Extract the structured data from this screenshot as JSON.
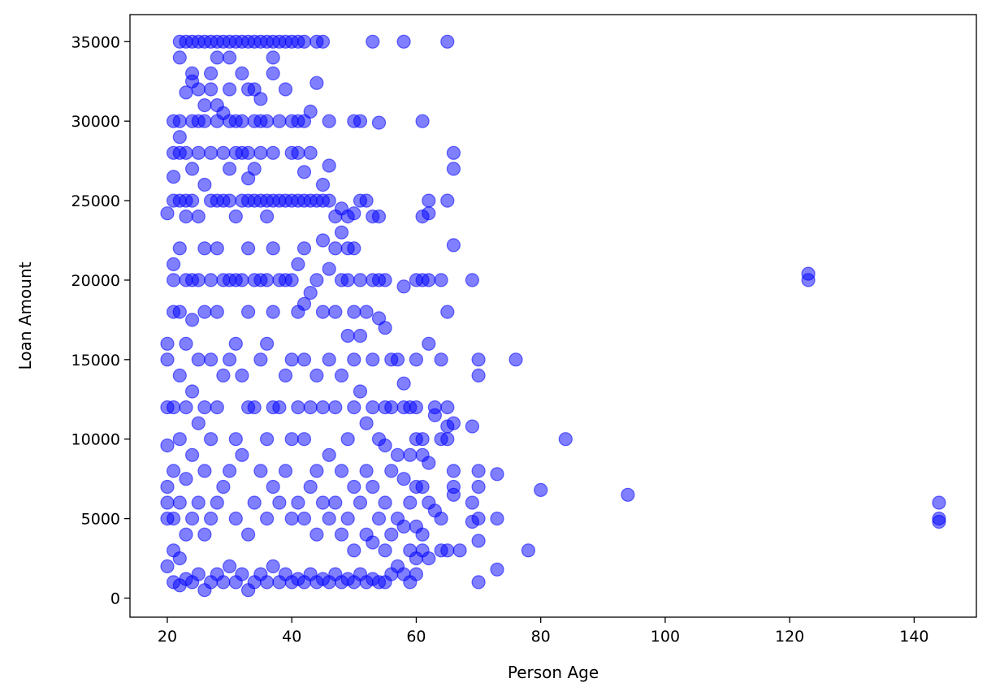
{
  "chart_data": {
    "type": "scatter",
    "title": "",
    "xlabel": "Person Age",
    "ylabel": "Loan Amount",
    "xlim": [
      14,
      150
    ],
    "ylim": [
      -1200,
      36700
    ],
    "xticks": [
      20,
      40,
      60,
      80,
      100,
      120,
      140
    ],
    "yticks": [
      0,
      5000,
      10000,
      15000,
      20000,
      25000,
      30000,
      35000
    ],
    "grid": false,
    "legend": "none",
    "marker_color": "#0000ff",
    "marker_alpha": 0.5,
    "points": [
      [
        20,
        2000
      ],
      [
        20,
        5000
      ],
      [
        20,
        6000
      ],
      [
        20,
        7000
      ],
      [
        20,
        9600
      ],
      [
        20,
        12000
      ],
      [
        20,
        15000
      ],
      [
        20,
        16000
      ],
      [
        20,
        24200
      ],
      [
        21,
        1000
      ],
      [
        21,
        3000
      ],
      [
        21,
        5000
      ],
      [
        21,
        8000
      ],
      [
        21,
        12000
      ],
      [
        21,
        18000
      ],
      [
        21,
        20000
      ],
      [
        21,
        21000
      ],
      [
        21,
        25000
      ],
      [
        21,
        26500
      ],
      [
        21,
        28000
      ],
      [
        21,
        30000
      ],
      [
        22,
        800
      ],
      [
        22,
        2500
      ],
      [
        22,
        6000
      ],
      [
        22,
        10000
      ],
      [
        22,
        14000
      ],
      [
        22,
        18000
      ],
      [
        22,
        22000
      ],
      [
        22,
        25000
      ],
      [
        22,
        28000
      ],
      [
        22,
        29000
      ],
      [
        22,
        30000
      ],
      [
        22,
        34000
      ],
      [
        22,
        35000
      ],
      [
        23,
        1200
      ],
      [
        23,
        4000
      ],
      [
        23,
        7500
      ],
      [
        23,
        12000
      ],
      [
        23,
        16000
      ],
      [
        23,
        20000
      ],
      [
        23,
        24000
      ],
      [
        23,
        25000
      ],
      [
        23,
        28000
      ],
      [
        23,
        31800
      ],
      [
        23,
        35000
      ],
      [
        24,
        1000
      ],
      [
        24,
        5000
      ],
      [
        24,
        9000
      ],
      [
        24,
        13000
      ],
      [
        24,
        17500
      ],
      [
        24,
        20000
      ],
      [
        24,
        25000
      ],
      [
        24,
        27000
      ],
      [
        24,
        30000
      ],
      [
        24,
        32500
      ],
      [
        24,
        33000
      ],
      [
        24,
        35000
      ],
      [
        25,
        1500
      ],
      [
        25,
        6000
      ],
      [
        25,
        11000
      ],
      [
        25,
        15000
      ],
      [
        25,
        20000
      ],
      [
        25,
        24000
      ],
      [
        25,
        28000
      ],
      [
        25,
        30000
      ],
      [
        25,
        32000
      ],
      [
        25,
        35000
      ],
      [
        26,
        500
      ],
      [
        26,
        4000
      ],
      [
        26,
        8000
      ],
      [
        26,
        12000
      ],
      [
        26,
        18000
      ],
      [
        26,
        22000
      ],
      [
        26,
        26000
      ],
      [
        26,
        30000
      ],
      [
        26,
        31000
      ],
      [
        26,
        35000
      ],
      [
        27,
        1000
      ],
      [
        27,
        5000
      ],
      [
        27,
        10000
      ],
      [
        27,
        15000
      ],
      [
        27,
        20000
      ],
      [
        27,
        25000
      ],
      [
        27,
        28000
      ],
      [
        27,
        32000
      ],
      [
        27,
        33000
      ],
      [
        27,
        35000
      ],
      [
        28,
        1500
      ],
      [
        28,
        6000
      ],
      [
        28,
        12000
      ],
      [
        28,
        18000
      ],
      [
        28,
        22000
      ],
      [
        28,
        25000
      ],
      [
        28,
        30000
      ],
      [
        28,
        31000
      ],
      [
        28,
        34000
      ],
      [
        28,
        35000
      ],
      [
        29,
        1000
      ],
      [
        29,
        7000
      ],
      [
        29,
        14000
      ],
      [
        29,
        20000
      ],
      [
        29,
        25000
      ],
      [
        29,
        28000
      ],
      [
        29,
        30500
      ],
      [
        29,
        35000
      ],
      [
        30,
        2000
      ],
      [
        30,
        8000
      ],
      [
        30,
        15000
      ],
      [
        30,
        20000
      ],
      [
        30,
        25000
      ],
      [
        30,
        27000
      ],
      [
        30,
        30000
      ],
      [
        30,
        32000
      ],
      [
        30,
        34000
      ],
      [
        30,
        35000
      ],
      [
        31,
        1000
      ],
      [
        31,
        5000
      ],
      [
        31,
        10000
      ],
      [
        31,
        16000
      ],
      [
        31,
        20000
      ],
      [
        31,
        24000
      ],
      [
        31,
        28000
      ],
      [
        31,
        30000
      ],
      [
        31,
        35000
      ],
      [
        32,
        1500
      ],
      [
        32,
        9000
      ],
      [
        32,
        14000
      ],
      [
        32,
        20000
      ],
      [
        32,
        25000
      ],
      [
        32,
        28000
      ],
      [
        32,
        30000
      ],
      [
        32,
        33000
      ],
      [
        32,
        35000
      ],
      [
        33,
        500
      ],
      [
        33,
        4000
      ],
      [
        33,
        12000
      ],
      [
        33,
        18000
      ],
      [
        33,
        22000
      ],
      [
        33,
        25000
      ],
      [
        33,
        26400
      ],
      [
        33,
        28000
      ],
      [
        33,
        32000
      ],
      [
        33,
        35000
      ],
      [
        34,
        1000
      ],
      [
        34,
        6000
      ],
      [
        34,
        12000
      ],
      [
        34,
        20000
      ],
      [
        34,
        25000
      ],
      [
        34,
        27000
      ],
      [
        34,
        30000
      ],
      [
        34,
        32000
      ],
      [
        34,
        35000
      ],
      [
        35,
        1500
      ],
      [
        35,
        8000
      ],
      [
        35,
        15000
      ],
      [
        35,
        20000
      ],
      [
        35,
        25000
      ],
      [
        35,
        28000
      ],
      [
        35,
        30000
      ],
      [
        35,
        31400
      ],
      [
        35,
        35000
      ],
      [
        36,
        1000
      ],
      [
        36,
        5000
      ],
      [
        36,
        10000
      ],
      [
        36,
        16000
      ],
      [
        36,
        20000
      ],
      [
        36,
        24000
      ],
      [
        36,
        25000
      ],
      [
        36,
        30000
      ],
      [
        36,
        35000
      ],
      [
        37,
        2000
      ],
      [
        37,
        7000
      ],
      [
        37,
        12000
      ],
      [
        37,
        18000
      ],
      [
        37,
        22000
      ],
      [
        37,
        25000
      ],
      [
        37,
        28000
      ],
      [
        37,
        33000
      ],
      [
        37,
        34000
      ],
      [
        37,
        35000
      ],
      [
        38,
        1000
      ],
      [
        38,
        6000
      ],
      [
        38,
        12000
      ],
      [
        38,
        20000
      ],
      [
        38,
        25000
      ],
      [
        38,
        30000
      ],
      [
        38,
        35000
      ],
      [
        39,
        1500
      ],
      [
        39,
        8000
      ],
      [
        39,
        14000
      ],
      [
        39,
        20000
      ],
      [
        39,
        25000
      ],
      [
        39,
        32000
      ],
      [
        39,
        35000
      ],
      [
        40,
        1000
      ],
      [
        40,
        5000
      ],
      [
        40,
        10000
      ],
      [
        40,
        15000
      ],
      [
        40,
        20000
      ],
      [
        40,
        25000
      ],
      [
        40,
        28000
      ],
      [
        40,
        30000
      ],
      [
        40,
        35000
      ],
      [
        41,
        1200
      ],
      [
        41,
        6000
      ],
      [
        41,
        12000
      ],
      [
        41,
        18000
      ],
      [
        41,
        21000
      ],
      [
        41,
        25000
      ],
      [
        41,
        28000
      ],
      [
        41,
        30000
      ],
      [
        41,
        35000
      ],
      [
        42,
        1000
      ],
      [
        42,
        5000
      ],
      [
        42,
        10000
      ],
      [
        42,
        15000
      ],
      [
        42,
        18500
      ],
      [
        42,
        22000
      ],
      [
        42,
        25000
      ],
      [
        42,
        26800
      ],
      [
        42,
        30000
      ],
      [
        42,
        35000
      ],
      [
        43,
        1500
      ],
      [
        43,
        7000
      ],
      [
        43,
        12000
      ],
      [
        43,
        19200
      ],
      [
        43,
        25000
      ],
      [
        43,
        28000
      ],
      [
        43,
        30600
      ],
      [
        44,
        1000
      ],
      [
        44,
        4000
      ],
      [
        44,
        8000
      ],
      [
        44,
        14000
      ],
      [
        44,
        20000
      ],
      [
        44,
        25000
      ],
      [
        44,
        32400
      ],
      [
        44,
        35000
      ],
      [
        45,
        1200
      ],
      [
        45,
        6000
      ],
      [
        45,
        12000
      ],
      [
        45,
        18000
      ],
      [
        45,
        22500
      ],
      [
        45,
        25000
      ],
      [
        45,
        26000
      ],
      [
        45,
        35000
      ],
      [
        46,
        1000
      ],
      [
        46,
        5000
      ],
      [
        46,
        9000
      ],
      [
        46,
        15000
      ],
      [
        46,
        20700
      ],
      [
        46,
        25000
      ],
      [
        46,
        27200
      ],
      [
        46,
        30000
      ],
      [
        47,
        1500
      ],
      [
        47,
        6000
      ],
      [
        47,
        12000
      ],
      [
        47,
        18000
      ],
      [
        47,
        22000
      ],
      [
        47,
        24000
      ],
      [
        48,
        1000
      ],
      [
        48,
        4000
      ],
      [
        48,
        8000
      ],
      [
        48,
        14000
      ],
      [
        48,
        20000
      ],
      [
        48,
        23000
      ],
      [
        48,
        24500
      ],
      [
        49,
        1200
      ],
      [
        49,
        5000
      ],
      [
        49,
        10000
      ],
      [
        49,
        16500
      ],
      [
        49,
        20000
      ],
      [
        49,
        22000
      ],
      [
        49,
        24000
      ],
      [
        50,
        1000
      ],
      [
        50,
        3000
      ],
      [
        50,
        7000
      ],
      [
        50,
        12000
      ],
      [
        50,
        15000
      ],
      [
        50,
        18000
      ],
      [
        50,
        22000
      ],
      [
        50,
        24200
      ],
      [
        50,
        30000
      ],
      [
        51,
        1500
      ],
      [
        51,
        6000
      ],
      [
        51,
        13000
      ],
      [
        51,
        16500
      ],
      [
        51,
        20000
      ],
      [
        51,
        25000
      ],
      [
        51,
        30000
      ],
      [
        52,
        1000
      ],
      [
        52,
        4000
      ],
      [
        52,
        8000
      ],
      [
        52,
        11000
      ],
      [
        52,
        18000
      ],
      [
        52,
        25000
      ],
      [
        53,
        1200
      ],
      [
        53,
        3500
      ],
      [
        53,
        7000
      ],
      [
        53,
        12000
      ],
      [
        53,
        15000
      ],
      [
        53,
        20000
      ],
      [
        53,
        24000
      ],
      [
        53,
        35000
      ],
      [
        54,
        1000
      ],
      [
        54,
        5000
      ],
      [
        54,
        10000
      ],
      [
        54,
        17600
      ],
      [
        54,
        20000
      ],
      [
        54,
        24000
      ],
      [
        54,
        29900
      ],
      [
        55,
        1000
      ],
      [
        55,
        3000
      ],
      [
        55,
        6000
      ],
      [
        55,
        9600
      ],
      [
        55,
        12000
      ],
      [
        55,
        17000
      ],
      [
        55,
        20000
      ],
      [
        56,
        1500
      ],
      [
        56,
        4000
      ],
      [
        56,
        8000
      ],
      [
        56,
        12000
      ],
      [
        56,
        15000
      ],
      [
        57,
        2000
      ],
      [
        57,
        5000
      ],
      [
        57,
        9000
      ],
      [
        57,
        15000
      ],
      [
        58,
        1500
      ],
      [
        58,
        4500
      ],
      [
        58,
        7500
      ],
      [
        58,
        12000
      ],
      [
        58,
        13500
      ],
      [
        58,
        19600
      ],
      [
        58,
        35000
      ],
      [
        59,
        1000
      ],
      [
        59,
        3000
      ],
      [
        59,
        6000
      ],
      [
        59,
        9000
      ],
      [
        59,
        12000
      ],
      [
        60,
        1500
      ],
      [
        60,
        2500
      ],
      [
        60,
        4500
      ],
      [
        60,
        7000
      ],
      [
        60,
        10000
      ],
      [
        60,
        12000
      ],
      [
        60,
        15000
      ],
      [
        60,
        20000
      ],
      [
        61,
        3000
      ],
      [
        61,
        4000
      ],
      [
        61,
        7000
      ],
      [
        61,
        9000
      ],
      [
        61,
        10000
      ],
      [
        61,
        20000
      ],
      [
        61,
        24000
      ],
      [
        61,
        30000
      ],
      [
        62,
        2500
      ],
      [
        62,
        6000
      ],
      [
        62,
        8500
      ],
      [
        62,
        16000
      ],
      [
        62,
        20000
      ],
      [
        62,
        24200
      ],
      [
        62,
        25000
      ],
      [
        63,
        5500
      ],
      [
        63,
        11500
      ],
      [
        63,
        12000
      ],
      [
        64,
        3000
      ],
      [
        64,
        5000
      ],
      [
        64,
        10000
      ],
      [
        64,
        15000
      ],
      [
        64,
        20000
      ],
      [
        65,
        3000
      ],
      [
        65,
        10000
      ],
      [
        65,
        10800
      ],
      [
        65,
        12000
      ],
      [
        65,
        18000
      ],
      [
        65,
        25000
      ],
      [
        65,
        35000
      ],
      [
        66,
        6500
      ],
      [
        66,
        7000
      ],
      [
        66,
        8000
      ],
      [
        66,
        11000
      ],
      [
        66,
        22200
      ],
      [
        66,
        27000
      ],
      [
        66,
        28000
      ],
      [
        67,
        3000
      ],
      [
        69,
        4800
      ],
      [
        69,
        6000
      ],
      [
        69,
        10800
      ],
      [
        69,
        20000
      ],
      [
        70,
        1000
      ],
      [
        70,
        3600
      ],
      [
        70,
        5000
      ],
      [
        70,
        7000
      ],
      [
        70,
        8000
      ],
      [
        70,
        14000
      ],
      [
        70,
        15000
      ],
      [
        73,
        1800
      ],
      [
        73,
        5000
      ],
      [
        73,
        7800
      ],
      [
        76,
        15000
      ],
      [
        78,
        3000
      ],
      [
        80,
        6800
      ],
      [
        84,
        10000
      ],
      [
        94,
        6500
      ],
      [
        123,
        20000
      ],
      [
        123,
        20400
      ],
      [
        144,
        4800
      ],
      [
        144,
        5000
      ],
      [
        144,
        6000
      ]
    ]
  }
}
